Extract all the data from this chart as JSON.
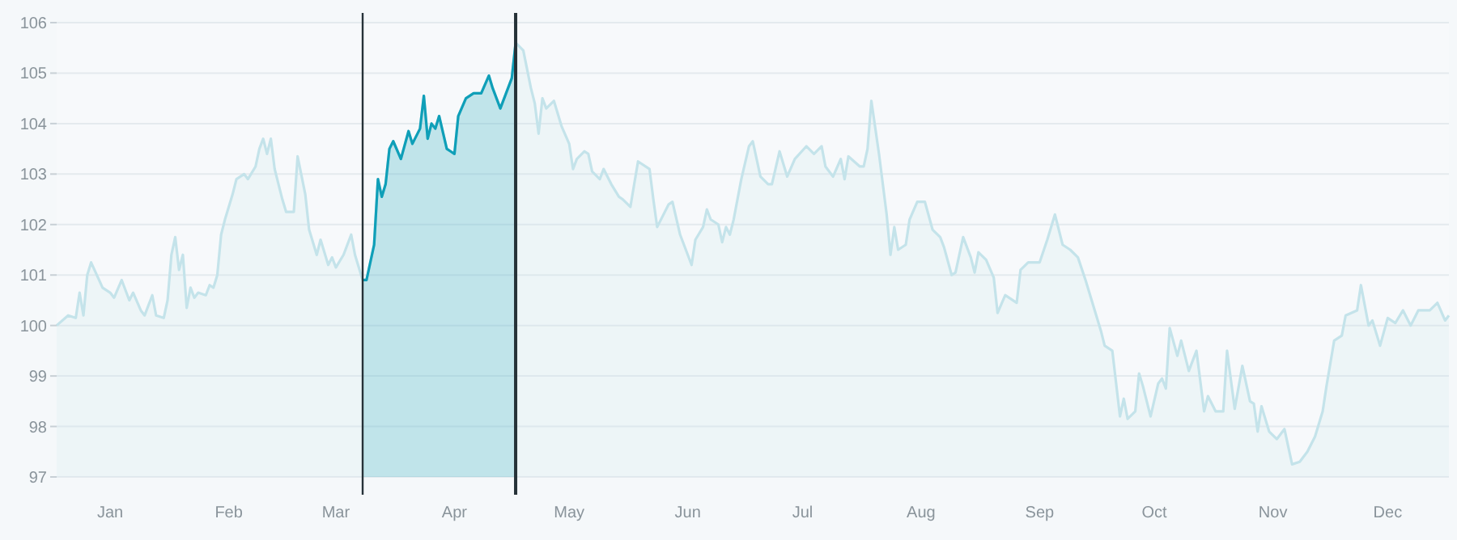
{
  "chart_data": {
    "type": "area",
    "xlim": [
      "--01-01",
      "--12-31"
    ],
    "ylim": [
      97,
      106
    ],
    "xticks": [
      {
        "value": "--01-15",
        "label": "Jan"
      },
      {
        "value": "--02-15",
        "label": "Feb"
      },
      {
        "value": "--03-15",
        "label": "Mar"
      },
      {
        "value": "--04-15",
        "label": "Apr"
      },
      {
        "value": "--05-15",
        "label": "May"
      },
      {
        "value": "--06-15",
        "label": "Jun"
      },
      {
        "value": "--07-15",
        "label": "Jul"
      },
      {
        "value": "--08-15",
        "label": "Aug"
      },
      {
        "value": "--09-15",
        "label": "Sep"
      },
      {
        "value": "--10-15",
        "label": "Oct"
      },
      {
        "value": "--11-15",
        "label": "Nov"
      },
      {
        "value": "--12-15",
        "label": "Dec"
      }
    ],
    "yticks": [
      97,
      98,
      99,
      100,
      101,
      102,
      103,
      104,
      105,
      106
    ],
    "grid": "y",
    "marker": "none",
    "ref_lines": [
      {
        "axis": "x",
        "value": "--03-22",
        "color": "#263238"
      },
      {
        "axis": "x",
        "value": "--05-01",
        "color": "#263238"
      }
    ],
    "series": [
      {
        "color": "#c4e3ea",
        "x": [
          "--01-01",
          "--01-04",
          "--01-06",
          "--01-07",
          "--01-08",
          "--01-09",
          "--01-10",
          "--01-13",
          "--01-15",
          "--01-16",
          "--01-18",
          "--01-20",
          "--01-21",
          "--01-23",
          "--01-24",
          "--01-26",
          "--01-27",
          "--01-29",
          "--01-30",
          "--01-31",
          "--02-01",
          "--02-02",
          "--02-03",
          "--02-04",
          "--02-05",
          "--02-06",
          "--02-07",
          "--02-09",
          "--02-10",
          "--02-11",
          "--02-12",
          "--02-13",
          "--02-14",
          "--02-16",
          "--02-17",
          "--02-19",
          "--02-20",
          "--02-22",
          "--02-23",
          "--02-24",
          "--02-25",
          "--02-26",
          "--02-27",
          "--03-01",
          "--03-02",
          "--03-04",
          "--03-05",
          "--03-07",
          "--03-08",
          "--03-10",
          "--03-11",
          "--03-13",
          "--03-14",
          "--03-15",
          "--03-17",
          "--03-19",
          "--03-20",
          "--03-22",
          "--03-23",
          "--03-25",
          "--03-26",
          "--03-27",
          "--03-28",
          "--03-29",
          "--03-30",
          "--04-01",
          "--04-03",
          "--04-04",
          "--04-06",
          "--04-07",
          "--04-08",
          "--04-09",
          "--04-10",
          "--04-11",
          "--04-13",
          "--04-14",
          "--04-15",
          "--04-16",
          "--04-18",
          "--04-20",
          "--04-22",
          "--04-24",
          "--04-25",
          "--04-27",
          "--04-30",
          "--05-01",
          "--05-03",
          "--05-05",
          "--05-06",
          "--05-07",
          "--05-08",
          "--05-09",
          "--05-11",
          "--05-13",
          "--05-15",
          "--05-16",
          "--05-17",
          "--05-19",
          "--05-20",
          "--05-21",
          "--05-23",
          "--05-24",
          "--05-26",
          "--05-28",
          "--05-29",
          "--05-31",
          "--06-01",
          "--06-02",
          "--06-05",
          "--06-06",
          "--06-07",
          "--06-10",
          "--06-11",
          "--06-13",
          "--06-16",
          "--06-17",
          "--06-19",
          "--06-20",
          "--06-21",
          "--06-23",
          "--06-24",
          "--06-25",
          "--06-26",
          "--06-27",
          "--06-29",
          "--07-01",
          "--07-02",
          "--07-04",
          "--07-06",
          "--07-07",
          "--07-09",
          "--07-11",
          "--07-13",
          "--07-16",
          "--07-18",
          "--07-20",
          "--07-21",
          "--07-23",
          "--07-25",
          "--07-26",
          "--07-27",
          "--07-30",
          "--07-31",
          "--08-01",
          "--08-02",
          "--08-04",
          "--08-06",
          "--08-07",
          "--08-08",
          "--08-09",
          "--08-11",
          "--08-12",
          "--08-14",
          "--08-16",
          "--08-18",
          "--08-20",
          "--08-21",
          "--08-23",
          "--08-24",
          "--08-26",
          "--08-28",
          "--08-29",
          "--08-30",
          "--09-01",
          "--09-03",
          "--09-04",
          "--09-06",
          "--09-09",
          "--09-10",
          "--09-12",
          "--09-15",
          "--09-17",
          "--09-19",
          "--09-21",
          "--09-23",
          "--09-25",
          "--09-27",
          "--09-29",
          "--10-01",
          "--10-02",
          "--10-04",
          "--10-06",
          "--10-07",
          "--10-08",
          "--10-10",
          "--10-11",
          "--10-12",
          "--10-14",
          "--10-16",
          "--10-17",
          "--10-18",
          "--10-19",
          "--10-21",
          "--10-22",
          "--10-24",
          "--10-26",
          "--10-28",
          "--10-29",
          "--10-31",
          "--11-02",
          "--11-03",
          "--11-05",
          "--11-07",
          "--11-09",
          "--11-10",
          "--11-11",
          "--11-12",
          "--11-14",
          "--11-16",
          "--11-18",
          "--11-20",
          "--11-22",
          "--11-24",
          "--11-26",
          "--11-28",
          "--11-29",
          "--12-01",
          "--12-03",
          "--12-04",
          "--12-07",
          "--12-08",
          "--12-10",
          "--12-11",
          "--12-13",
          "--12-15",
          "--12-17",
          "--12-19",
          "--12-21",
          "--12-23",
          "--12-26",
          "--12-28",
          "--12-30",
          "--12-31"
        ],
        "values": [
          100.0,
          100.2,
          100.15,
          100.65,
          100.2,
          101.0,
          101.25,
          100.75,
          100.65,
          100.55,
          100.9,
          100.5,
          100.65,
          100.3,
          100.2,
          100.6,
          100.2,
          100.15,
          100.5,
          101.4,
          101.75,
          101.1,
          101.4,
          100.35,
          100.75,
          100.55,
          100.65,
          100.6,
          100.8,
          100.75,
          101.0,
          101.8,
          102.1,
          102.6,
          102.9,
          103.0,
          102.9,
          103.15,
          103.5,
          103.7,
          103.4,
          103.7,
          103.1,
          102.5,
          102.25,
          102.25,
          103.35,
          102.6,
          101.9,
          101.4,
          101.7,
          101.2,
          101.35,
          101.15,
          101.4,
          101.8,
          101.4,
          100.9,
          100.9,
          101.6,
          102.9,
          102.55,
          102.8,
          103.5,
          103.65,
          103.3,
          103.85,
          103.6,
          103.9,
          104.55,
          103.7,
          104.0,
          103.9,
          104.15,
          103.5,
          103.45,
          103.4,
          104.15,
          104.5,
          104.6,
          104.6,
          104.95,
          104.7,
          104.3,
          104.9,
          105.6,
          105.45,
          104.7,
          104.4,
          103.8,
          104.5,
          104.3,
          104.45,
          103.95,
          103.6,
          103.1,
          103.3,
          103.45,
          103.4,
          103.05,
          102.9,
          103.1,
          102.8,
          102.55,
          102.5,
          102.35,
          102.8,
          103.25,
          103.1,
          102.5,
          101.95,
          102.4,
          102.45,
          101.8,
          101.2,
          101.7,
          101.95,
          102.3,
          102.1,
          102.0,
          101.65,
          101.95,
          101.8,
          102.1,
          102.9,
          103.55,
          103.65,
          102.95,
          102.8,
          102.8,
          103.45,
          102.95,
          103.3,
          103.55,
          103.4,
          103.55,
          103.15,
          102.95,
          103.3,
          102.9,
          103.35,
          103.15,
          103.15,
          103.5,
          104.45,
          103.4,
          102.2,
          101.4,
          101.95,
          101.5,
          101.6,
          102.1,
          102.45,
          102.45,
          101.9,
          101.75,
          101.55,
          101.0,
          101.05,
          101.75,
          101.35,
          101.05,
          101.45,
          101.3,
          100.95,
          100.25,
          100.6,
          100.45,
          101.1,
          101.25,
          101.25,
          101.7,
          102.2,
          101.6,
          101.5,
          101.35,
          100.9,
          100.4,
          99.9,
          99.6,
          99.5,
          98.2,
          98.55,
          98.15,
          98.3,
          99.05,
          98.8,
          98.2,
          98.85,
          98.95,
          98.75,
          99.95,
          99.4,
          99.7,
          99.1,
          99.5,
          98.3,
          98.6,
          98.3,
          98.3,
          99.5,
          98.35,
          99.2,
          98.5,
          98.45,
          97.9,
          98.4,
          97.9,
          97.75,
          97.95,
          97.25,
          97.3,
          97.5,
          97.8,
          98.3,
          98.8,
          99.7,
          99.8,
          100.2,
          100.3,
          100.8,
          100.0,
          100.1,
          99.6,
          100.15,
          100.05,
          100.3,
          100.0,
          100.3,
          100.3,
          100.45,
          100.1,
          100.2
        ]
      },
      {
        "color": "#0f9fb8",
        "x": [
          "--03-22",
          "--03-23",
          "--03-25",
          "--03-26",
          "--03-27",
          "--03-28",
          "--03-29",
          "--03-30",
          "--04-01",
          "--04-03",
          "--04-04",
          "--04-06",
          "--04-07",
          "--04-08",
          "--04-09",
          "--04-10",
          "--04-11",
          "--04-13",
          "--04-14",
          "--04-15",
          "--04-16",
          "--04-18",
          "--04-20",
          "--04-22",
          "--04-24",
          "--04-25",
          "--04-27",
          "--04-30",
          "--05-01"
        ],
        "values": [
          100.9,
          100.9,
          101.6,
          102.9,
          102.55,
          102.8,
          103.5,
          103.65,
          103.3,
          103.85,
          103.6,
          103.9,
          104.55,
          103.7,
          104.0,
          103.9,
          104.15,
          103.5,
          103.45,
          103.4,
          104.15,
          104.5,
          104.6,
          104.6,
          104.95,
          104.7,
          104.3,
          104.9,
          105.6
        ]
      }
    ]
  }
}
